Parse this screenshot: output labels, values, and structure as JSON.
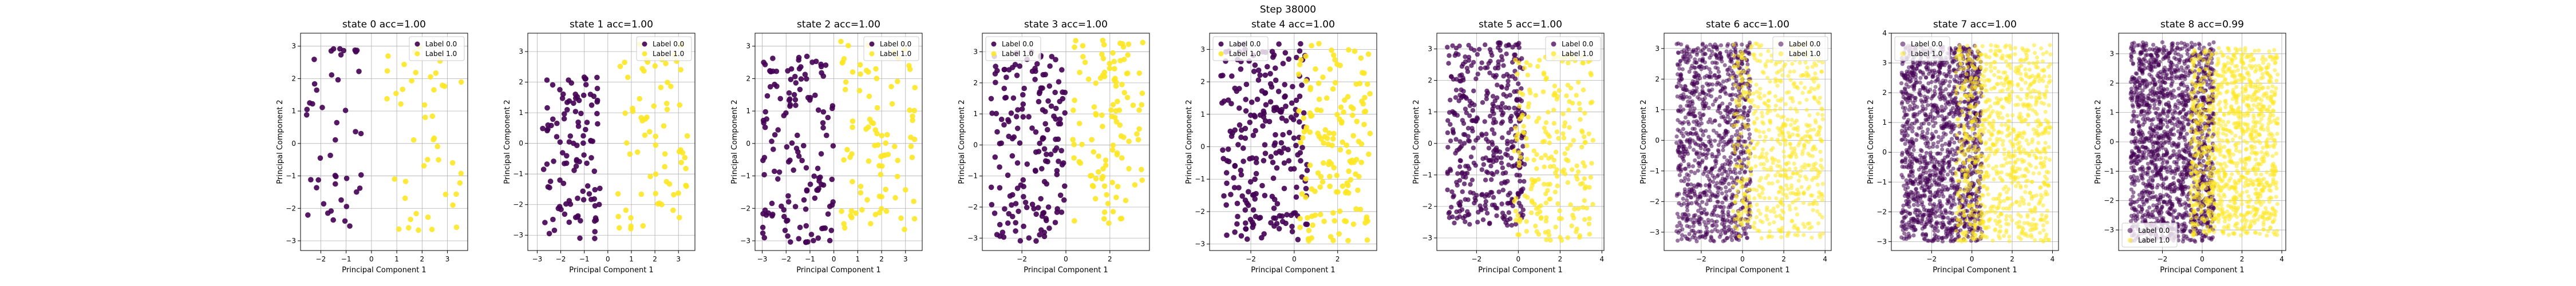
{
  "figure": {
    "suptitle": "Step 38000"
  },
  "chart_data": [
    {
      "type": "scatter",
      "title": "state 0 acc=1.00",
      "xlabel": "Principal Component 1",
      "ylabel": "Principal Component 2",
      "xlim": [
        -2.8,
        3.8
      ],
      "ylim": [
        -3.3,
        3.4
      ],
      "xticks": [
        -2,
        -1,
        0,
        1,
        2,
        3
      ],
      "yticks": [
        -3,
        -2,
        -1,
        0,
        1,
        2,
        3
      ],
      "grid": true,
      "legend": "upper right",
      "series_names": [
        "Label 0.0",
        "Label 1.0"
      ],
      "colors": [
        "#440154",
        "#fde725"
      ],
      "n_points": [
        45,
        45
      ],
      "clusters": [
        {
          "label": 0,
          "x": [
            -2.6,
            -0.4
          ],
          "y": [
            -2.9,
            3.0
          ]
        },
        {
          "label": 1,
          "x": [
            0.6,
            3.6
          ],
          "y": [
            -3.1,
            3.2
          ]
        }
      ]
    },
    {
      "type": "scatter",
      "title": "state 1 acc=1.00",
      "xlabel": "Principal Component 1",
      "ylabel": "Principal Component 2",
      "xlim": [
        -3.4,
        3.7
      ],
      "ylim": [
        -3.5,
        3.6
      ],
      "xticks": [
        -3,
        -2,
        -1,
        0,
        1,
        2,
        3
      ],
      "yticks": [
        -3,
        -2,
        -1,
        0,
        1,
        2,
        3
      ],
      "grid": true,
      "legend": "upper right",
      "series_names": [
        "Label 0.0",
        "Label 1.0"
      ],
      "colors": [
        "#440154",
        "#fde725"
      ],
      "n_points": [
        110,
        70
      ],
      "clusters": [
        {
          "label": 0,
          "x": [
            -2.8,
            -0.3
          ],
          "y": [
            -3.2,
            2.3
          ]
        },
        {
          "label": 1,
          "x": [
            0.4,
            3.4
          ],
          "y": [
            -2.8,
            3.3
          ]
        }
      ]
    },
    {
      "type": "scatter",
      "title": "state 2 acc=1.00",
      "xlabel": "Principal Component 1",
      "ylabel": "Principal Component 2",
      "xlim": [
        -3.3,
        3.7
      ],
      "ylim": [
        -3.3,
        3.4
      ],
      "xticks": [
        -3,
        -2,
        -1,
        0,
        1,
        2,
        3
      ],
      "yticks": [
        -3,
        -2,
        -1,
        0,
        1,
        2,
        3
      ],
      "grid": true,
      "legend": "upper right",
      "series_names": [
        "Label 0.0",
        "Label 1.0"
      ],
      "colors": [
        "#440154",
        "#fde725"
      ],
      "n_points": [
        140,
        90
      ],
      "clusters": [
        {
          "label": 0,
          "x": [
            -3.0,
            0.0
          ],
          "y": [
            -3.1,
            2.7
          ]
        },
        {
          "label": 1,
          "x": [
            0.2,
            3.4
          ],
          "y": [
            -2.7,
            3.2
          ]
        }
      ]
    },
    {
      "type": "scatter",
      "title": "state 3 acc=1.00",
      "xlabel": "Principal Component 1",
      "ylabel": "Principal Component 2",
      "xlim": [
        -3.8,
        3.8
      ],
      "ylim": [
        -3.4,
        3.6
      ],
      "xticks": [
        -2,
        0,
        2
      ],
      "yticks": [
        -3,
        -2,
        -1,
        0,
        1,
        2,
        3
      ],
      "grid": true,
      "legend": "upper left",
      "series_names": [
        "Label 0.0",
        "Label 1.0"
      ],
      "colors": [
        "#440154",
        "#fde725"
      ],
      "n_points": [
        170,
        110
      ],
      "clusters": [
        {
          "label": 0,
          "x": [
            -3.4,
            0.0
          ],
          "y": [
            -3.1,
            3.0
          ]
        },
        {
          "label": 1,
          "x": [
            0.3,
            3.5
          ],
          "y": [
            -2.6,
            3.4
          ]
        }
      ]
    },
    {
      "type": "scatter",
      "title": "state 4 acc=1.00",
      "xlabel": "Principal Component 1",
      "ylabel": "Principal Component 2",
      "xlim": [
        -3.9,
        3.8
      ],
      "ylim": [
        -3.2,
        3.5
      ],
      "xticks": [
        -2,
        0,
        2
      ],
      "yticks": [
        -3,
        -2,
        -1,
        0,
        1,
        2,
        3
      ],
      "grid": true,
      "legend": "upper left",
      "series_names": [
        "Label 0.0",
        "Label 1.0"
      ],
      "colors": [
        "#440154",
        "#fde725"
      ],
      "n_points": [
        230,
        150
      ],
      "clusters": [
        {
          "label": 0,
          "x": [
            -3.4,
            0.6
          ],
          "y": [
            -2.9,
            3.2
          ]
        },
        {
          "label": 1,
          "x": [
            0.2,
            3.5
          ],
          "y": [
            -2.9,
            3.2
          ]
        }
      ]
    },
    {
      "type": "scatter",
      "title": "state 5 acc=1.00",
      "xlabel": "Principal Component 1",
      "ylabel": "Principal Component 2",
      "xlim": [
        -3.9,
        4.1
      ],
      "ylim": [
        -3.4,
        3.5
      ],
      "xticks": [
        -2,
        0,
        2,
        4
      ],
      "yticks": [
        -3,
        -2,
        -1,
        0,
        1,
        2,
        3
      ],
      "grid": true,
      "legend": "upper right",
      "series_names": [
        "Label 0.0",
        "Label 1.0"
      ],
      "colors": [
        "#440154",
        "#fde725"
      ],
      "n_points": [
        420,
        230
      ],
      "clusters": [
        {
          "label": 0,
          "x": [
            -3.4,
            0.3
          ],
          "y": [
            -2.6,
            3.2
          ]
        },
        {
          "label": 1,
          "x": [
            -0.2,
            3.6
          ],
          "y": [
            -3.1,
            2.8
          ]
        }
      ]
    },
    {
      "type": "scatter",
      "title": "state 6 acc=1.00",
      "xlabel": "Principal Component 1",
      "ylabel": "Principal Component 2",
      "xlim": [
        -3.8,
        4.3
      ],
      "ylim": [
        -3.6,
        3.5
      ],
      "xticks": [
        -2,
        0,
        2,
        4
      ],
      "yticks": [
        -3,
        -2,
        -1,
        0,
        1,
        2,
        3
      ],
      "grid": true,
      "legend": "upper right",
      "series_names": [
        "Label 0.0",
        "Label 1.0"
      ],
      "colors": [
        "#440154",
        "#fde725"
      ],
      "n_points": [
        1000,
        620
      ],
      "clusters": [
        {
          "label": 0,
          "x": [
            -3.2,
            0.4
          ],
          "y": [
            -3.3,
            3.2
          ]
        },
        {
          "label": 1,
          "x": [
            -0.5,
            3.9
          ],
          "y": [
            -3.2,
            3.2
          ]
        }
      ]
    },
    {
      "type": "scatter",
      "title": "state 7 acc=1.00",
      "xlabel": "Principal Component 1",
      "ylabel": "Principal Component 2",
      "xlim": [
        -4.0,
        4.3
      ],
      "ylim": [
        -3.3,
        4.0
      ],
      "xticks": [
        -2,
        0,
        2,
        4
      ],
      "yticks": [
        -3,
        -2,
        -1,
        0,
        1,
        2,
        3,
        4
      ],
      "grid": true,
      "legend": "upper left",
      "series_names": [
        "Label 0.0",
        "Label 1.0"
      ],
      "colors": [
        "#440154",
        "#fde725"
      ],
      "n_points": [
        1400,
        900
      ],
      "clusters": [
        {
          "label": 0,
          "x": [
            -3.5,
            0.5
          ],
          "y": [
            -3.0,
            3.6
          ]
        },
        {
          "label": 1,
          "x": [
            -0.8,
            3.9
          ],
          "y": [
            -3.0,
            3.6
          ]
        }
      ]
    },
    {
      "type": "scatter",
      "title": "state 8 acc=0.99",
      "xlabel": "Principal Component 1",
      "ylabel": "Principal Component 2",
      "xlim": [
        -4.2,
        4.2
      ],
      "ylim": [
        -3.7,
        3.7
      ],
      "xticks": [
        -2,
        0,
        2,
        4
      ],
      "yticks": [
        -3,
        -2,
        -1,
        0,
        1,
        2,
        3
      ],
      "grid": true,
      "legend": "lower left",
      "series_names": [
        "Label 0.0",
        "Label 1.0"
      ],
      "colors": [
        "#440154",
        "#fde725"
      ],
      "n_points": [
        1600,
        1100
      ],
      "clusters": [
        {
          "label": 0,
          "x": [
            -3.6,
            0.6
          ],
          "y": [
            -3.4,
            3.4
          ]
        },
        {
          "label": 1,
          "x": [
            -0.6,
            3.8
          ],
          "y": [
            -3.2,
            3.2
          ]
        }
      ]
    }
  ]
}
